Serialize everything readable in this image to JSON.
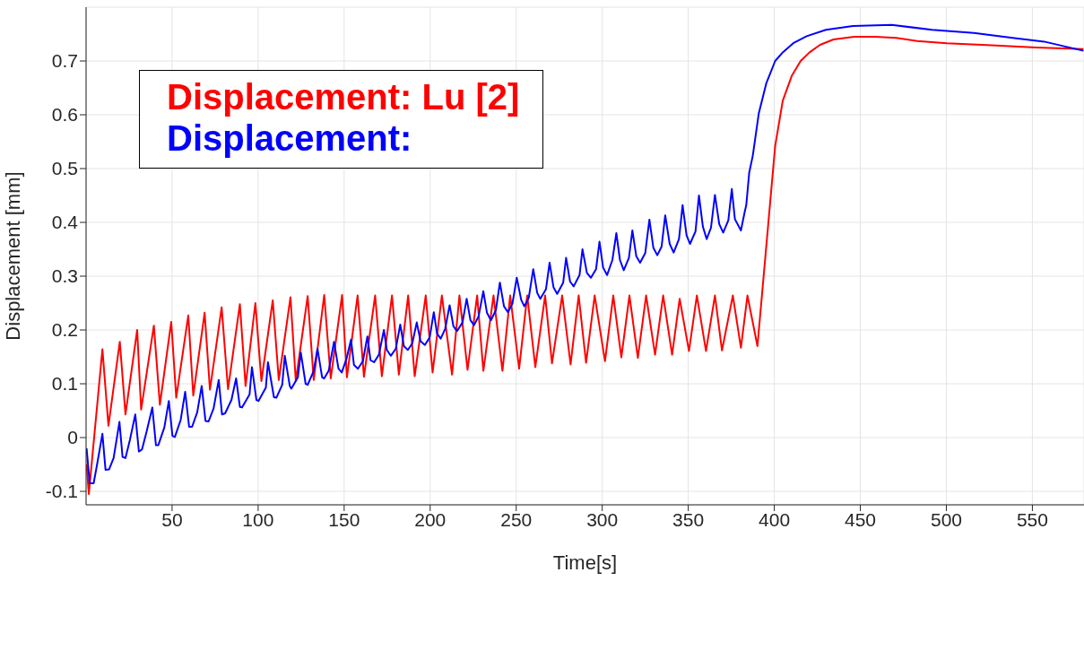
{
  "chart_data": {
    "type": "line",
    "xlabel": "Time[s]",
    "ylabel": "Displacement [mm]",
    "xlim": [
      0,
      580
    ],
    "xticks": [
      50,
      100,
      150,
      200,
      250,
      300,
      350,
      400,
      450,
      500,
      550
    ],
    "ylim": [
      -0.125,
      0.8
    ],
    "yticks": [
      -0.1,
      0,
      0.1,
      0.2,
      0.3,
      0.4,
      0.5,
      0.6,
      0.7
    ],
    "grid": true,
    "legend": "top left",
    "marker": "none",
    "line_style": "solid",
    "series": [
      {
        "name": "Displacement: Lu [2]",
        "color": "#ff0000",
        "x": [
          0.3,
          1.6,
          9.5,
          13,
          19.6,
          22.9,
          29.7,
          32,
          39.4,
          42.9,
          49.5,
          52.4,
          59.4,
          62.3,
          68.9,
          72,
          78.8,
          82.5,
          89.4,
          92.7,
          98.4,
          101.9,
          108.5,
          112,
          118.8,
          121.9,
          128.8,
          132.3,
          138.4,
          142.2,
          148.8,
          151.6,
          157.8,
          161.5,
          168,
          171.9,
          177.8,
          181.8,
          187.2,
          191,
          197.4,
          201.4,
          206.8,
          212.7,
          217,
          221.7,
          227.3,
          230.9,
          236.8,
          242,
          246.5,
          251.7,
          256.4,
          261.1,
          266.8,
          270.8,
          276.7,
          281.6,
          286.3,
          290.6,
          295.6,
          301.6,
          306.4,
          311.1,
          315.8,
          320.7,
          325.5,
          330.7,
          335.4,
          340.6,
          345,
          350.4,
          355,
          360.3,
          365.5,
          369.6,
          375.9,
          380.6,
          384.4,
          390.2,
          400.5,
          404.9,
          410.1,
          415.3,
          420.5,
          426.6,
          434.4,
          446.5,
          458.7,
          470.8,
          483,
          500.3,
          526.4,
          552.4,
          579.7
        ],
        "values": [
          -0.05,
          -0.105,
          0.164,
          0.022,
          0.178,
          0.043,
          0.2,
          0.052,
          0.208,
          0.061,
          0.215,
          0.074,
          0.227,
          0.078,
          0.232,
          0.089,
          0.242,
          0.09,
          0.248,
          0.096,
          0.25,
          0.105,
          0.255,
          0.107,
          0.261,
          0.105,
          0.263,
          0.107,
          0.265,
          0.11,
          0.265,
          0.112,
          0.264,
          0.113,
          0.264,
          0.114,
          0.264,
          0.117,
          0.264,
          0.114,
          0.264,
          0.121,
          0.264,
          0.117,
          0.264,
          0.126,
          0.264,
          0.124,
          0.264,
          0.124,
          0.264,
          0.128,
          0.264,
          0.131,
          0.264,
          0.138,
          0.264,
          0.136,
          0.264,
          0.139,
          0.264,
          0.142,
          0.264,
          0.149,
          0.264,
          0.148,
          0.264,
          0.154,
          0.264,
          0.154,
          0.258,
          0.161,
          0.264,
          0.161,
          0.264,
          0.162,
          0.264,
          0.167,
          0.264,
          0.17,
          0.542,
          0.626,
          0.672,
          0.7,
          0.716,
          0.73,
          0.74,
          0.745,
          0.745,
          0.743,
          0.737,
          0.733,
          0.729,
          0.725,
          0.722
        ]
      },
      {
        "name": "Displacement:",
        "color": "#0000ff",
        "x": [
          0.3,
          2.1,
          4.4,
          6.4,
          9.5,
          11.3,
          13.4,
          16,
          19.4,
          21.2,
          22.9,
          25.5,
          28.6,
          30.7,
          32.5,
          35.1,
          38.5,
          40.6,
          42,
          45.5,
          48.1,
          50.2,
          51.6,
          55,
          57.6,
          59.9,
          61.6,
          64.6,
          67.2,
          69.4,
          71.2,
          74.1,
          77.1,
          79,
          80.8,
          84.5,
          87.2,
          89.4,
          90.6,
          95,
          96.4,
          99,
          100.2,
          104.5,
          105.7,
          109.2,
          110.6,
          114,
          115.5,
          118.4,
          119.3,
          123.1,
          124.8,
          127.6,
          128.8,
          132.3,
          134.5,
          137.2,
          138.4,
          141,
          144.1,
          146.7,
          148.6,
          151.4,
          154,
          155.7,
          158,
          160.9,
          163.5,
          165.3,
          167.4,
          170.2,
          173.1,
          174.8,
          177.1,
          180,
          182.6,
          184.7,
          187,
          189.6,
          192.2,
          194.4,
          196.9,
          199.7,
          202.1,
          204,
          206.1,
          208.7,
          211.3,
          213.5,
          215.6,
          218.8,
          221.2,
          223.4,
          225.5,
          228.1,
          230.9,
          233,
          235.3,
          238.2,
          240.5,
          242.9,
          245.2,
          247.8,
          250.3,
          252.9,
          254.7,
          257.3,
          259.9,
          262.2,
          264,
          267.3,
          269.4,
          271.7,
          273.8,
          277.3,
          279,
          281.3,
          283.4,
          286.8,
          288.5,
          291.1,
          293.4,
          296.4,
          298.4,
          300.5,
          302.8,
          305.9,
          308.2,
          310.3,
          312.5,
          315.5,
          317.5,
          319.8,
          322,
          325,
          327.4,
          329.7,
          332,
          334.5,
          336.6,
          339.2,
          341.5,
          344.6,
          346.7,
          349,
          351,
          354.2,
          356.2,
          358.5,
          360.7,
          363.2,
          365.5,
          368,
          370.3,
          373.3,
          375.3,
          377.1,
          380.6,
          382.7,
          383.7,
          385.4,
          387.5,
          391,
          395.3,
          400.5,
          404.9,
          411,
          418.8,
          430,
          445.7,
          468.2,
          491.7,
          516,
          538.5,
          556.8,
          579.7
        ],
        "values": [
          -0.02,
          -0.085,
          -0.085,
          -0.05,
          0.007,
          -0.06,
          -0.059,
          -0.038,
          0.029,
          -0.036,
          -0.038,
          -0.004,
          0.043,
          -0.026,
          -0.022,
          0.01,
          0.056,
          -0.014,
          -0.014,
          0.019,
          0.068,
          0.003,
          0.001,
          0.033,
          0.085,
          0.02,
          0.02,
          0.047,
          0.096,
          0.031,
          0.03,
          0.054,
          0.107,
          0.043,
          0.045,
          0.07,
          0.11,
          0.057,
          0.056,
          0.08,
          0.131,
          0.07,
          0.068,
          0.093,
          0.14,
          0.075,
          0.074,
          0.098,
          0.152,
          0.096,
          0.091,
          0.112,
          0.158,
          0.1,
          0.098,
          0.124,
          0.165,
          0.112,
          0.11,
          0.124,
          0.178,
          0.128,
          0.121,
          0.147,
          0.182,
          0.135,
          0.128,
          0.142,
          0.188,
          0.144,
          0.14,
          0.154,
          0.2,
          0.163,
          0.152,
          0.165,
          0.21,
          0.17,
          0.163,
          0.175,
          0.214,
          0.179,
          0.172,
          0.186,
          0.233,
          0.193,
          0.184,
          0.202,
          0.246,
          0.207,
          0.198,
          0.214,
          0.258,
          0.218,
          0.209,
          0.225,
          0.272,
          0.232,
          0.218,
          0.237,
          0.288,
          0.244,
          0.233,
          0.249,
          0.297,
          0.256,
          0.244,
          0.26,
          0.313,
          0.269,
          0.258,
          0.276,
          0.325,
          0.279,
          0.267,
          0.288,
          0.334,
          0.29,
          0.281,
          0.302,
          0.35,
          0.306,
          0.297,
          0.313,
          0.364,
          0.316,
          0.302,
          0.33,
          0.38,
          0.33,
          0.311,
          0.334,
          0.385,
          0.337,
          0.325,
          0.343,
          0.405,
          0.353,
          0.339,
          0.355,
          0.413,
          0.36,
          0.344,
          0.369,
          0.432,
          0.376,
          0.36,
          0.383,
          0.45,
          0.392,
          0.369,
          0.39,
          0.451,
          0.397,
          0.381,
          0.404,
          0.462,
          0.406,
          0.385,
          0.418,
          0.432,
          0.492,
          0.524,
          0.603,
          0.658,
          0.7,
          0.716,
          0.733,
          0.746,
          0.758,
          0.765,
          0.767,
          0.758,
          0.752,
          0.743,
          0.736,
          0.719
        ]
      }
    ]
  }
}
